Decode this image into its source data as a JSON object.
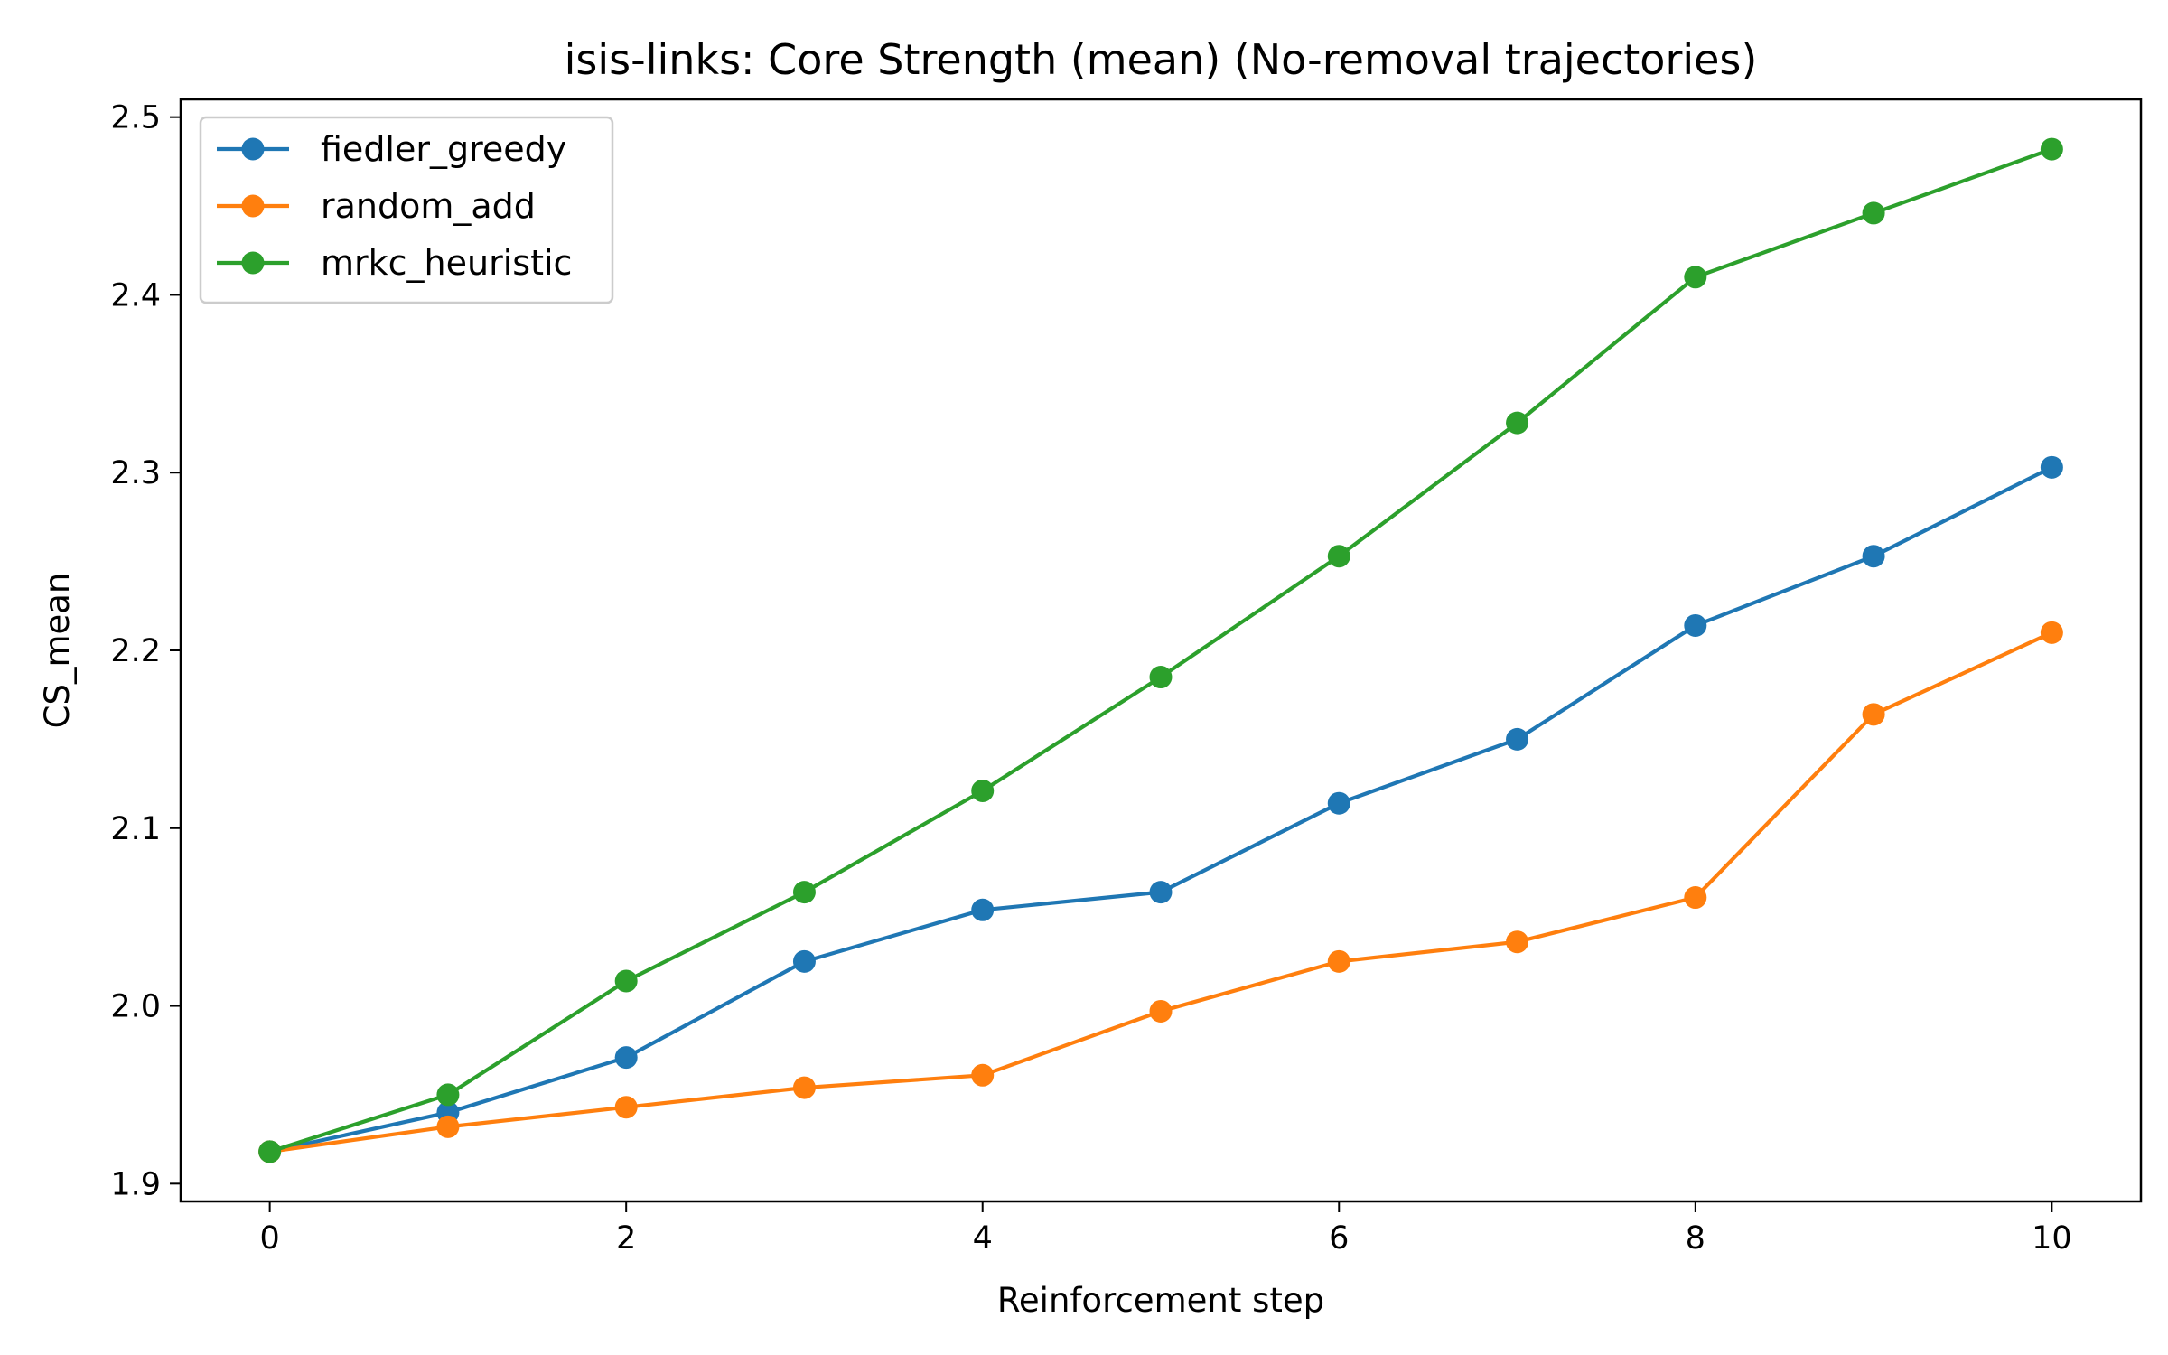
{
  "chart_data": {
    "type": "line",
    "title": "isis-links: Core Strength (mean) (No-removal trajectories)",
    "xlabel": "Reinforcement step",
    "ylabel": "CS_mean",
    "xlim": [
      -0.5,
      10.5
    ],
    "ylim": [
      1.89,
      2.51
    ],
    "xticks": [
      0,
      2,
      4,
      6,
      8,
      10
    ],
    "yticks": [
      1.9,
      2.0,
      2.1,
      2.2,
      2.3,
      2.4,
      2.5
    ],
    "xtick_labels": [
      "0",
      "2",
      "4",
      "6",
      "8",
      "10"
    ],
    "ytick_labels": [
      "1.9",
      "2.0",
      "2.1",
      "2.2",
      "2.3",
      "2.4",
      "2.5"
    ],
    "grid": false,
    "legend_position": "top-left",
    "x": [
      0,
      1,
      2,
      3,
      4,
      5,
      6,
      7,
      8,
      9,
      10
    ],
    "series": [
      {
        "name": "fiedler_greedy",
        "color": "#1f77b4",
        "marker": "circle",
        "values": [
          1.918,
          1.94,
          1.971,
          2.025,
          2.054,
          2.064,
          2.114,
          2.15,
          2.214,
          2.253,
          2.303
        ]
      },
      {
        "name": "random_add",
        "color": "#ff7f0e",
        "marker": "circle",
        "values": [
          1.918,
          1.932,
          1.943,
          1.954,
          1.961,
          1.997,
          2.025,
          2.036,
          2.061,
          2.164,
          2.21
        ]
      },
      {
        "name": "mrkc_heuristic",
        "color": "#2ca02c",
        "marker": "circle",
        "values": [
          1.918,
          1.95,
          2.014,
          2.064,
          2.121,
          2.185,
          2.253,
          2.328,
          2.41,
          2.446,
          2.482
        ]
      }
    ]
  }
}
